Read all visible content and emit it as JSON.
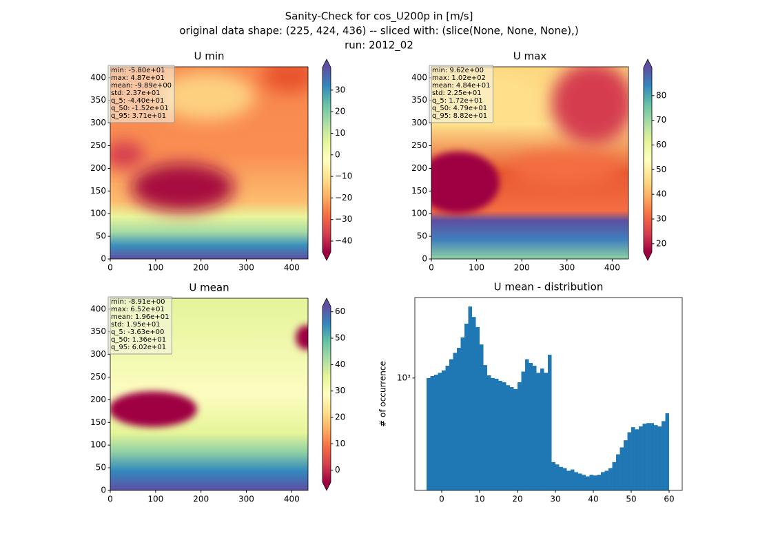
{
  "title": [
    "Sanity-Check for cos_U200p in [m/s]",
    "original data shape: (225, 424, 436) -- sliced with: (slice(None, None, None),)",
    "run: 2012_02"
  ],
  "colormap": [
    "#9e0142",
    "#d53e4f",
    "#f46d43",
    "#fdae61",
    "#fee08b",
    "#ffffbf",
    "#e6f598",
    "#abdda4",
    "#66c2a5",
    "#3288bd",
    "#5e4fa2"
  ],
  "chart_data": [
    {
      "type": "heatmap",
      "title": "U min",
      "xlim": [
        0,
        436
      ],
      "ylim": [
        0,
        424
      ],
      "xticks": [
        0,
        100,
        200,
        300,
        400
      ],
      "yticks": [
        0,
        50,
        100,
        150,
        200,
        250,
        300,
        350,
        400
      ],
      "stats": [
        "min: -5.80e+01",
        "max: 4.87e+01",
        "mean: -9.89e+00",
        "std: 2.37e+01",
        "q_5: -4.40e+01",
        "q_50: -1.52e+01",
        "q_95: 3.71e+01"
      ],
      "colorbar": {
        "lim": [
          -45.1,
          40.5
        ],
        "ticks": [
          {
            "value": -40,
            "label": "−40"
          },
          {
            "value": -30,
            "label": "−30"
          },
          {
            "value": -20,
            "label": "−20"
          },
          {
            "value": -10,
            "label": "−10"
          },
          0,
          10,
          20,
          30
        ]
      }
    },
    {
      "type": "heatmap",
      "title": "U max",
      "xlim": [
        0,
        436
      ],
      "ylim": [
        0,
        424
      ],
      "xticks": [
        0,
        100,
        200,
        300,
        400
      ],
      "yticks": [
        0,
        50,
        100,
        150,
        200,
        250,
        300,
        350,
        400
      ],
      "stats": [
        "min: 9.62e+00",
        "max: 1.02e+02",
        "mean: 4.84e+01",
        "std: 2.25e+01",
        "q_5: 1.72e+01",
        "q_50: 4.79e+01",
        "q_95: 8.82e+01"
      ],
      "colorbar": {
        "lim": [
          16.6,
          91.4
        ],
        "ticks": [
          20,
          30,
          40,
          50,
          60,
          70,
          80
        ]
      }
    },
    {
      "type": "heatmap",
      "title": "U mean",
      "xlim": [
        0,
        436
      ],
      "ylim": [
        0,
        424
      ],
      "xticks": [
        0,
        100,
        200,
        300,
        400
      ],
      "yticks": [
        0,
        50,
        100,
        150,
        200,
        250,
        300,
        350,
        400
      ],
      "stats": [
        "min: -8.91e+00",
        "max: 6.52e+01",
        "mean: 1.96e+01",
        "std: 1.95e+01",
        "q_5: -3.63e+00",
        "q_50: 1.36e+01",
        "q_95: 6.02e+01"
      ],
      "colorbar": {
        "lim": [
          -4.5,
          62
        ],
        "ticks": [
          0,
          10,
          20,
          30,
          40,
          50,
          60
        ]
      }
    },
    {
      "type": "histogram",
      "title": "U mean - distribution",
      "y_label": "# of occurrence",
      "color": "#1f77b4",
      "log_y": true,
      "xlim": [
        -7.09,
        63.45
      ],
      "xticks": [
        0,
        10,
        20,
        30,
        40,
        50,
        60
      ],
      "ylim": [
        191,
        3275
      ],
      "yticks": [
        {
          "value": 1000,
          "label": "10³"
        }
      ],
      "bins": [
        -4,
        -3,
        -2,
        -1,
        0,
        1,
        2,
        3,
        4,
        5,
        6,
        7,
        8,
        9,
        10,
        11,
        12,
        13,
        14,
        15,
        16,
        17,
        18,
        19,
        20,
        21,
        22,
        23,
        24,
        25,
        26,
        27,
        28,
        29,
        30,
        31,
        32,
        33,
        34,
        35,
        36,
        37,
        38,
        39,
        40,
        41,
        42,
        43,
        44,
        45,
        46,
        47,
        48,
        49,
        50,
        51,
        52,
        53,
        54,
        55,
        56,
        57,
        58,
        59,
        60
      ],
      "values": [
        1000,
        1030,
        1050,
        1080,
        1120,
        1200,
        1320,
        1450,
        1560,
        1820,
        2230,
        2870,
        2460,
        2120,
        1640,
        1210,
        1040,
        1000,
        990,
        960,
        940,
        900,
        875,
        850,
        940,
        1100,
        1320,
        1250,
        1200,
        1080,
        1150,
        1080,
        1410,
        290,
        280,
        270,
        265,
        255,
        260,
        250,
        245,
        240,
        235,
        240,
        238,
        240,
        250,
        255,
        265,
        290,
        325,
        360,
        400,
        450,
        485,
        470,
        490,
        510,
        515,
        515,
        500,
        490,
        530,
        595
      ]
    }
  ]
}
